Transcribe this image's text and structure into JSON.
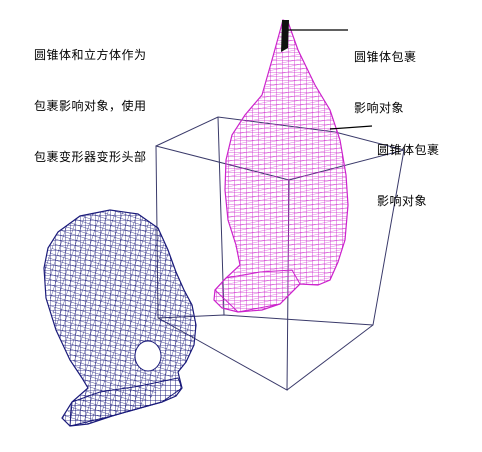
{
  "caption": {
    "line1": "圆锥体和立方体作为",
    "line2": "包裹影响对象，使用",
    "line3": "包裹变形器变形头部"
  },
  "callout_top": {
    "line1": "圆锥体包裹",
    "line2": "影响对象"
  },
  "callout_side": {
    "line1": "圆锥体包裹",
    "line2": "影响对象"
  },
  "colors": {
    "original_head": "#1a1a7a",
    "deformed_head": "#cc22cc",
    "cube": "#3a3a6a",
    "leader": "#000000"
  }
}
